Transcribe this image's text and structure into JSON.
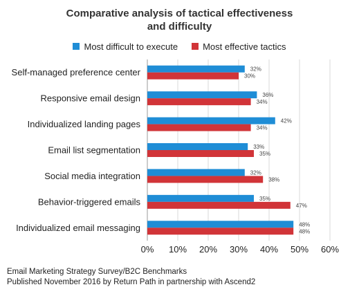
{
  "title_line1": "Comparative analysis of tactical effectiveness",
  "title_line2": "and difficulty",
  "footer": {
    "line1": "Email Marketing Strategy Survey/B2C Benchmarks",
    "line2": "Published November 2016 by Return Path in partnership with Ascend2"
  },
  "colors": {
    "difficult": "#1f8dd6",
    "effective": "#d13438"
  },
  "chart_data": {
    "type": "bar",
    "orientation": "horizontal",
    "title": "Comparative analysis of tactical effectiveness and difficulty",
    "categories": [
      "Self-managed preference center",
      "Responsive email design",
      "Individualized landing pages",
      "Email list segmentation",
      "Social media integration",
      "Behavior-triggered emails",
      "Individualized email messaging"
    ],
    "series": [
      {
        "name": "Most difficult to execute",
        "values": [
          32,
          36,
          42,
          33,
          32,
          35,
          48
        ]
      },
      {
        "name": "Most effective tactics",
        "values": [
          30,
          34,
          34,
          35,
          38,
          47,
          48
        ]
      }
    ],
    "data_labels": [
      [
        "32%",
        "36%",
        "42%",
        "33%",
        "32%",
        "35%",
        "48%"
      ],
      [
        "30%",
        "34%",
        "34%",
        "35%",
        "38%",
        "47%",
        "48%"
      ]
    ],
    "xlim": [
      0,
      60
    ],
    "xticks": [
      "0%",
      "10%",
      "20%",
      "30%",
      "40%",
      "50%",
      "60%"
    ],
    "grid": true,
    "legend_position": "top"
  }
}
